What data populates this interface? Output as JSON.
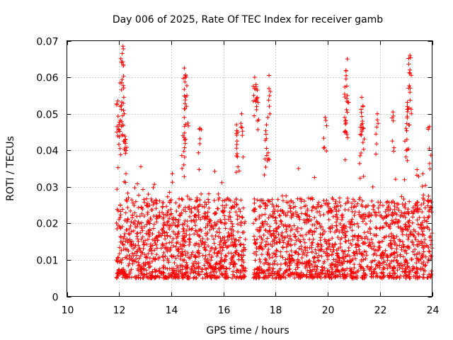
{
  "chart_data": {
    "type": "scatter",
    "title": "Day 006 of 2025, Rate Of TEC Index for receiver gamb",
    "xlabel": "GPS time / hours",
    "ylabel": "ROTI / TECUs",
    "xlim": [
      10,
      24
    ],
    "ylim": [
      0,
      0.07
    ],
    "xticks": [
      "10",
      "12",
      "14",
      "16",
      "18",
      "20",
      "22",
      "24"
    ],
    "yticks": [
      "0",
      "0.01",
      "0.02",
      "0.03",
      "0.04",
      "0.05",
      "0.06",
      "0.07"
    ],
    "grid": true,
    "marker": "+",
    "series_color": "#ff0000",
    "series": [
      {
        "name": "ROTI",
        "segments": [
          {
            "x": [
              11.9,
              24.0
            ],
            "base": 0.008,
            "spread": 0.022
          }
        ],
        "baseline_range": [
          0.005,
          0.03
        ],
        "peaks": [
          {
            "x": 11.95,
            "y": 0.0535
          },
          {
            "x": 12.0,
            "y": 0.047
          },
          {
            "x": 12.05,
            "y": 0.052
          },
          {
            "x": 12.1,
            "y": 0.0585
          },
          {
            "x": 12.12,
            "y": 0.0665
          },
          {
            "x": 12.15,
            "y": 0.0685
          },
          {
            "x": 12.18,
            "y": 0.0545
          },
          {
            "x": 12.2,
            "y": 0.05
          },
          {
            "x": 12.25,
            "y": 0.043
          },
          {
            "x": 14.5,
            "y": 0.0625
          },
          {
            "x": 14.55,
            "y": 0.0605
          },
          {
            "x": 14.6,
            "y": 0.055
          },
          {
            "x": 14.5,
            "y": 0.049
          },
          {
            "x": 14.45,
            "y": 0.044
          },
          {
            "x": 15.1,
            "y": 0.046
          },
          {
            "x": 16.5,
            "y": 0.047
          },
          {
            "x": 16.55,
            "y": 0.045
          },
          {
            "x": 16.7,
            "y": 0.05
          },
          {
            "x": 17.2,
            "y": 0.06
          },
          {
            "x": 17.25,
            "y": 0.058
          },
          {
            "x": 17.3,
            "y": 0.0565
          },
          {
            "x": 17.75,
            "y": 0.0605
          },
          {
            "x": 17.7,
            "y": 0.049
          },
          {
            "x": 17.65,
            "y": 0.047
          },
          {
            "x": 19.9,
            "y": 0.049
          },
          {
            "x": 20.75,
            "y": 0.065
          },
          {
            "x": 20.7,
            "y": 0.0595
          },
          {
            "x": 20.75,
            "y": 0.055
          },
          {
            "x": 20.65,
            "y": 0.049
          },
          {
            "x": 21.3,
            "y": 0.0545
          },
          {
            "x": 21.35,
            "y": 0.052
          },
          {
            "x": 21.3,
            "y": 0.047
          },
          {
            "x": 21.9,
            "y": 0.05
          },
          {
            "x": 22.5,
            "y": 0.0505
          },
          {
            "x": 23.15,
            "y": 0.066
          },
          {
            "x": 23.15,
            "y": 0.062
          },
          {
            "x": 23.1,
            "y": 0.057
          },
          {
            "x": 23.05,
            "y": 0.052
          },
          {
            "x": 23.0,
            "y": 0.046
          },
          {
            "x": 23.9,
            "y": 0.0465
          }
        ]
      }
    ]
  }
}
